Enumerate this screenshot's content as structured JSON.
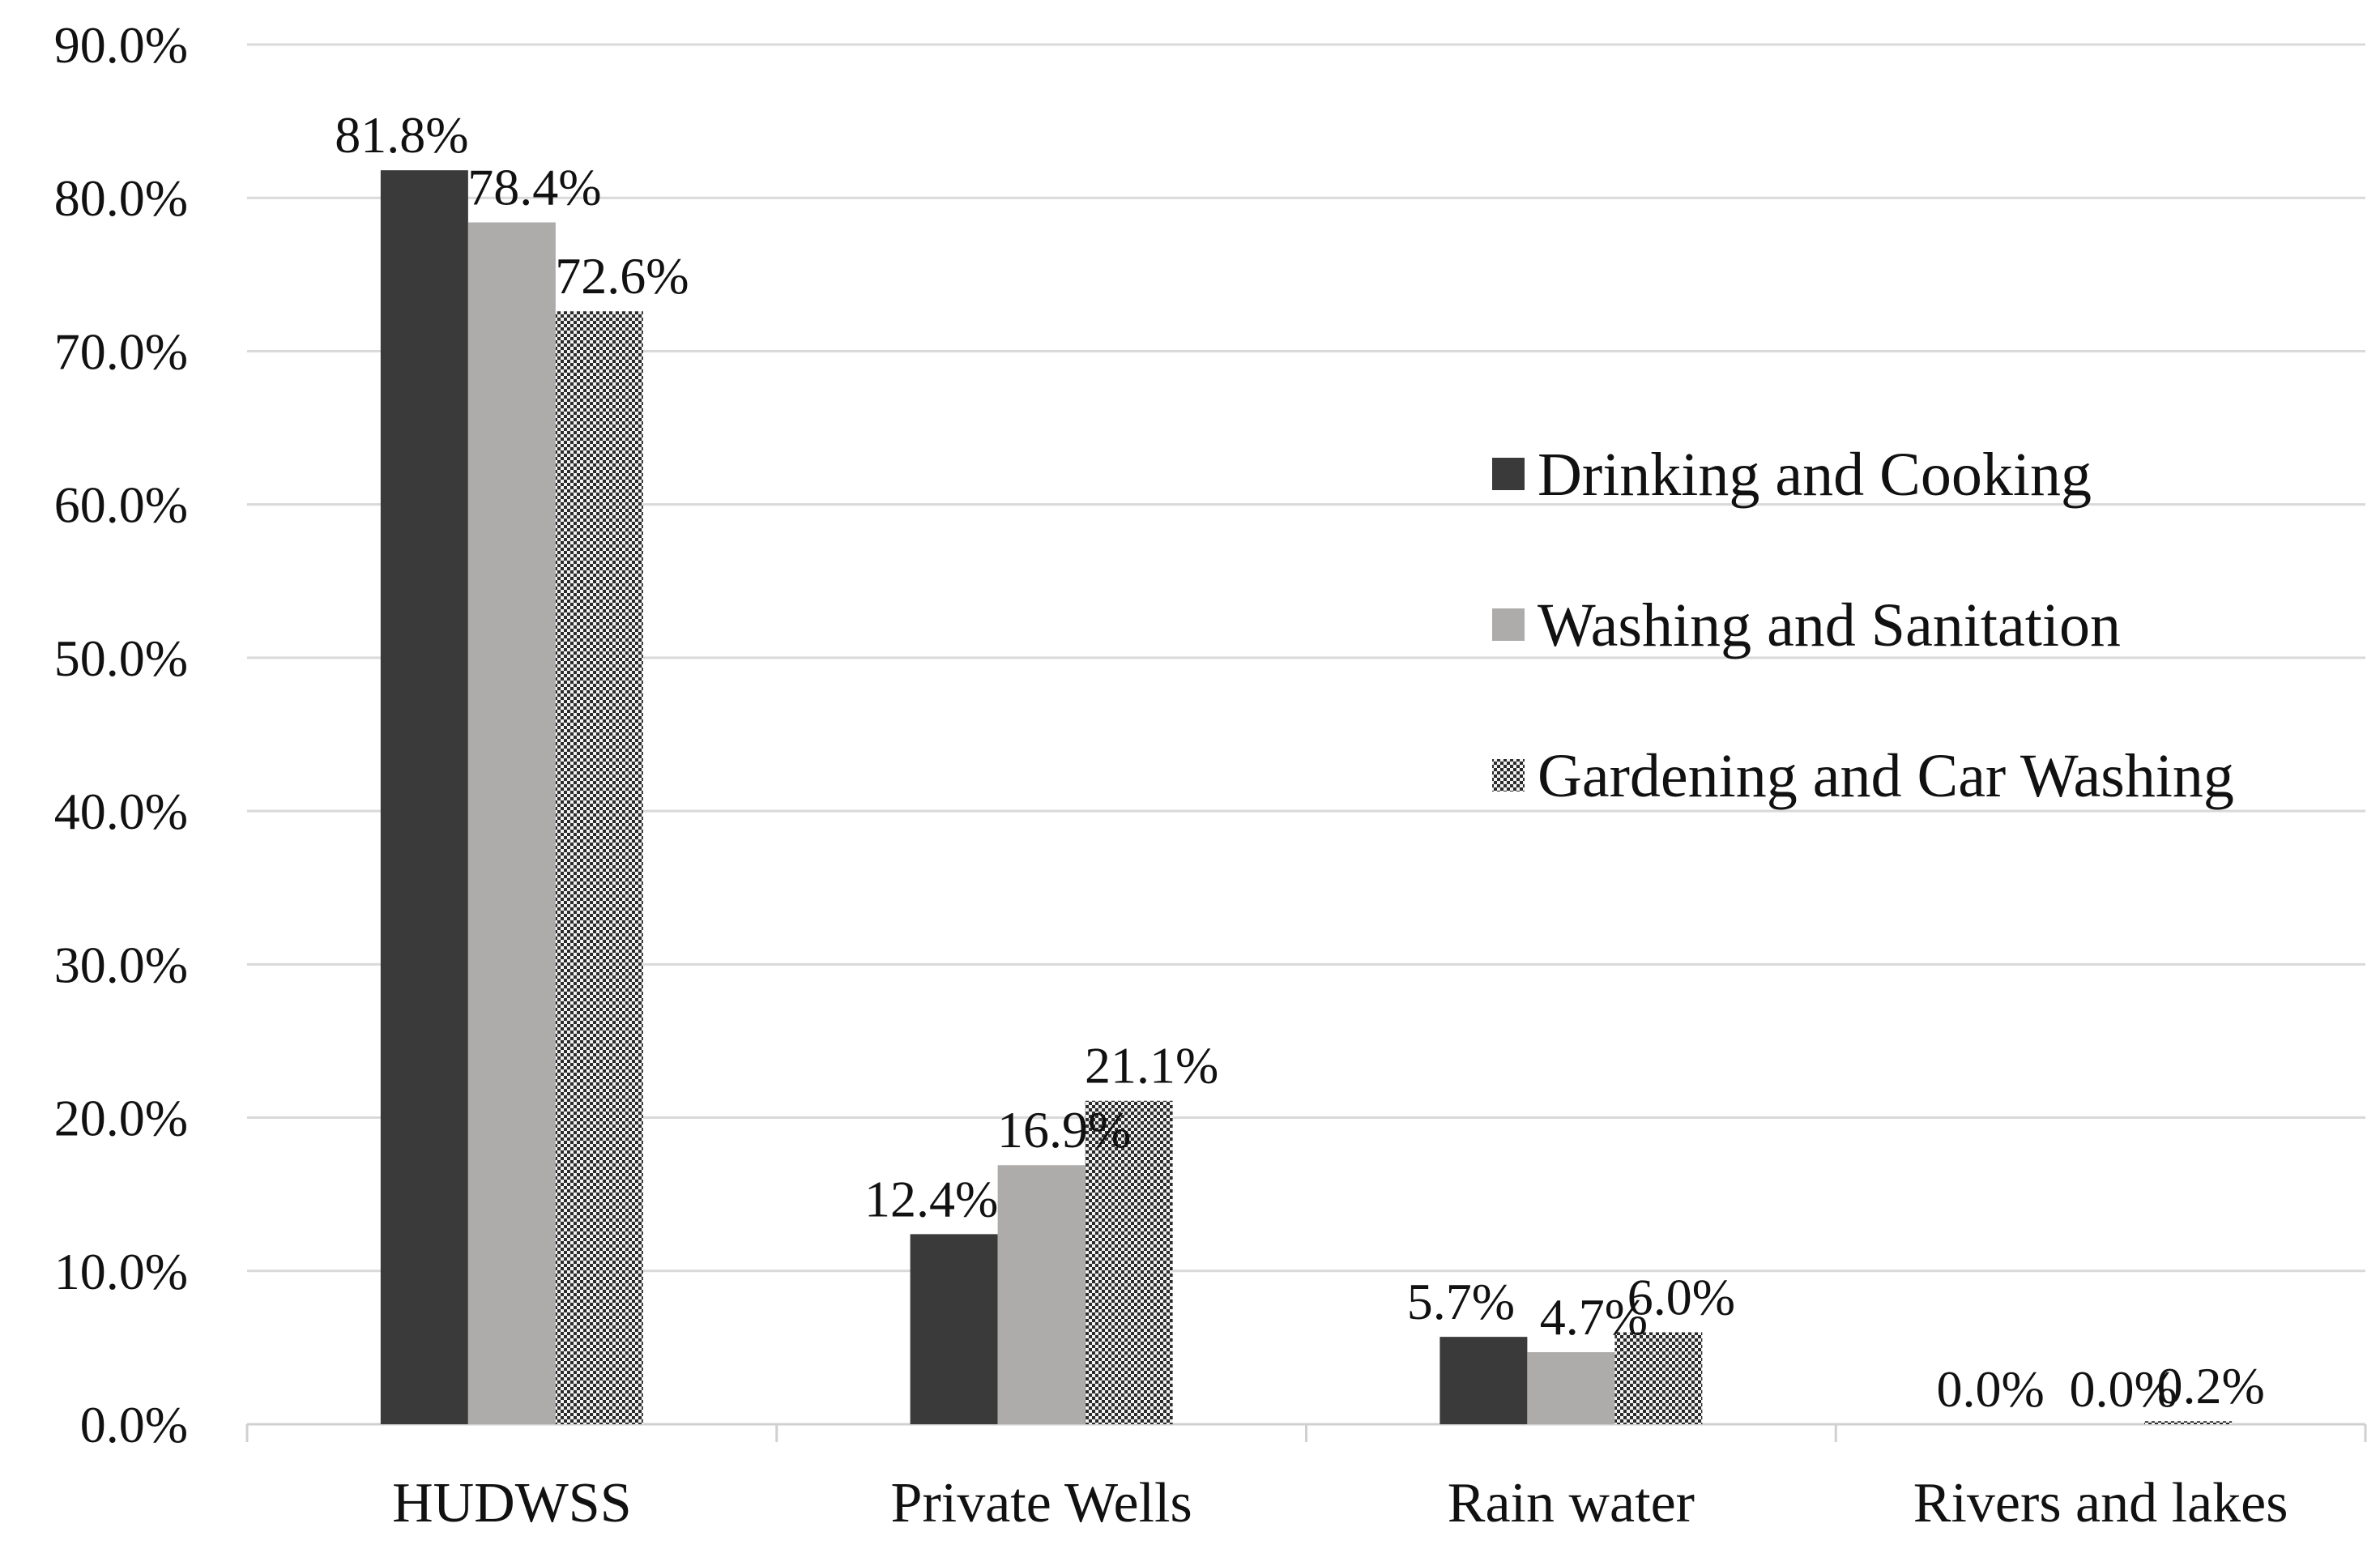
{
  "chart_data": {
    "type": "bar",
    "title": "",
    "xlabel": "",
    "ylabel": "",
    "ylim": [
      0,
      90
    ],
    "ytick_step": 10,
    "ytick_labels": [
      "0.0%",
      "10.0%",
      "20.0%",
      "30.0%",
      "40.0%",
      "50.0%",
      "60.0%",
      "70.0%",
      "80.0%",
      "90.0%"
    ],
    "categories": [
      "HUDWSS",
      "Private Wells",
      "Rain water",
      "Rivers and lakes"
    ],
    "grid": true,
    "legend_position": "right-middle",
    "series": [
      {
        "name": "Drinking and Cooking",
        "color": "#3a3a3a",
        "pattern": "solid",
        "values": [
          81.8,
          12.4,
          5.7,
          0.0
        ],
        "labels": [
          "81.8%",
          "12.4%",
          "5.7%",
          "0.0%"
        ]
      },
      {
        "name": "Washing and Sanitation",
        "color": "#aeacab",
        "pattern": "solid",
        "values": [
          78.4,
          16.9,
          4.7,
          0.0
        ],
        "labels": [
          "78.4%",
          "16.9%",
          "4.7%",
          "0.0%"
        ]
      },
      {
        "name": "Gardening and Car Washing",
        "color": "#3a3a3a",
        "pattern": "checker",
        "values": [
          72.6,
          21.1,
          6.0,
          0.2
        ],
        "labels": [
          "72.6%",
          "21.1%",
          "6.0%",
          "0.2%"
        ]
      }
    ]
  }
}
